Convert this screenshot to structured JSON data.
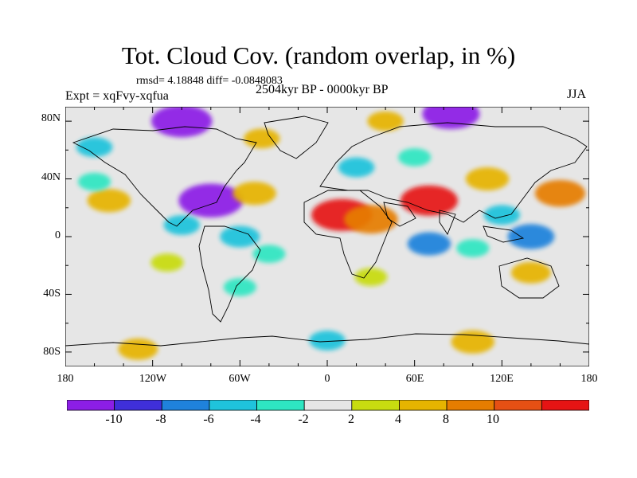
{
  "title": "Tot. Cloud Cov. (random overlap, in %)",
  "stats": "rmsd= 4.18848 diff= -0.0848083",
  "experiment": "Expt = xqFvy-xqfua",
  "period": "2504kyr BP - 0000kyr BP",
  "season": "JJA",
  "map": {
    "lat_ticks": [
      "80N",
      "40N",
      "0",
      "40S",
      "80S"
    ],
    "lon_ticks": [
      "180",
      "120W",
      "60W",
      "0",
      "60E",
      "120E",
      "180"
    ]
  },
  "colorbar": {
    "labels": [
      "-10",
      "-8",
      "-6",
      "-4",
      "-2",
      "2",
      "4",
      "8",
      "10"
    ],
    "colors": [
      "#8c1ee6",
      "#3f2fd9",
      "#1f82dc",
      "#1fc3dc",
      "#2ee6c2",
      "#e6e6e6",
      "#c8dc10",
      "#e6b400",
      "#e67d00",
      "#e65014",
      "#e61414"
    ]
  },
  "anomalies": [
    {
      "lon": -150,
      "lat": 25,
      "value": 6
    },
    {
      "lon": -160,
      "lat": 38,
      "value": -3
    },
    {
      "lon": -80,
      "lat": 25,
      "value": -12
    },
    {
      "lon": -100,
      "lat": 8,
      "value": -4
    },
    {
      "lon": -50,
      "lat": 30,
      "value": 6
    },
    {
      "lon": -60,
      "lat": 0,
      "value": -5
    },
    {
      "lon": -40,
      "lat": -12,
      "value": -3
    },
    {
      "lon": -110,
      "lat": -18,
      "value": 3
    },
    {
      "lon": 10,
      "lat": 15,
      "value": 11
    },
    {
      "lon": 30,
      "lat": 12,
      "value": 9
    },
    {
      "lon": 70,
      "lat": 25,
      "value": 10
    },
    {
      "lon": 110,
      "lat": 40,
      "value": 6
    },
    {
      "lon": 160,
      "lat": 30,
      "value": 8
    },
    {
      "lon": 120,
      "lat": 15,
      "value": -4
    },
    {
      "lon": 140,
      "lat": 0,
      "value": -7
    },
    {
      "lon": 70,
      "lat": -5,
      "value": -6
    },
    {
      "lon": 100,
      "lat": -8,
      "value": -3
    },
    {
      "lon": 140,
      "lat": -25,
      "value": 5
    },
    {
      "lon": 20,
      "lat": 48,
      "value": -4
    },
    {
      "lon": 60,
      "lat": 55,
      "value": -3
    },
    {
      "lon": -100,
      "lat": 80,
      "value": -11
    },
    {
      "lon": 85,
      "lat": 85,
      "value": -10
    },
    {
      "lon": -45,
      "lat": 68,
      "value": 4
    },
    {
      "lon": -160,
      "lat": 62,
      "value": -4
    },
    {
      "lon": 40,
      "lat": 80,
      "value": 4
    },
    {
      "lon": 100,
      "lat": -73,
      "value": 6
    },
    {
      "lon": -130,
      "lat": -78,
      "value": 5
    },
    {
      "lon": 0,
      "lat": -72,
      "value": -4
    },
    {
      "lon": -60,
      "lat": -35,
      "value": -3
    },
    {
      "lon": 30,
      "lat": -28,
      "value": 3
    }
  ]
}
